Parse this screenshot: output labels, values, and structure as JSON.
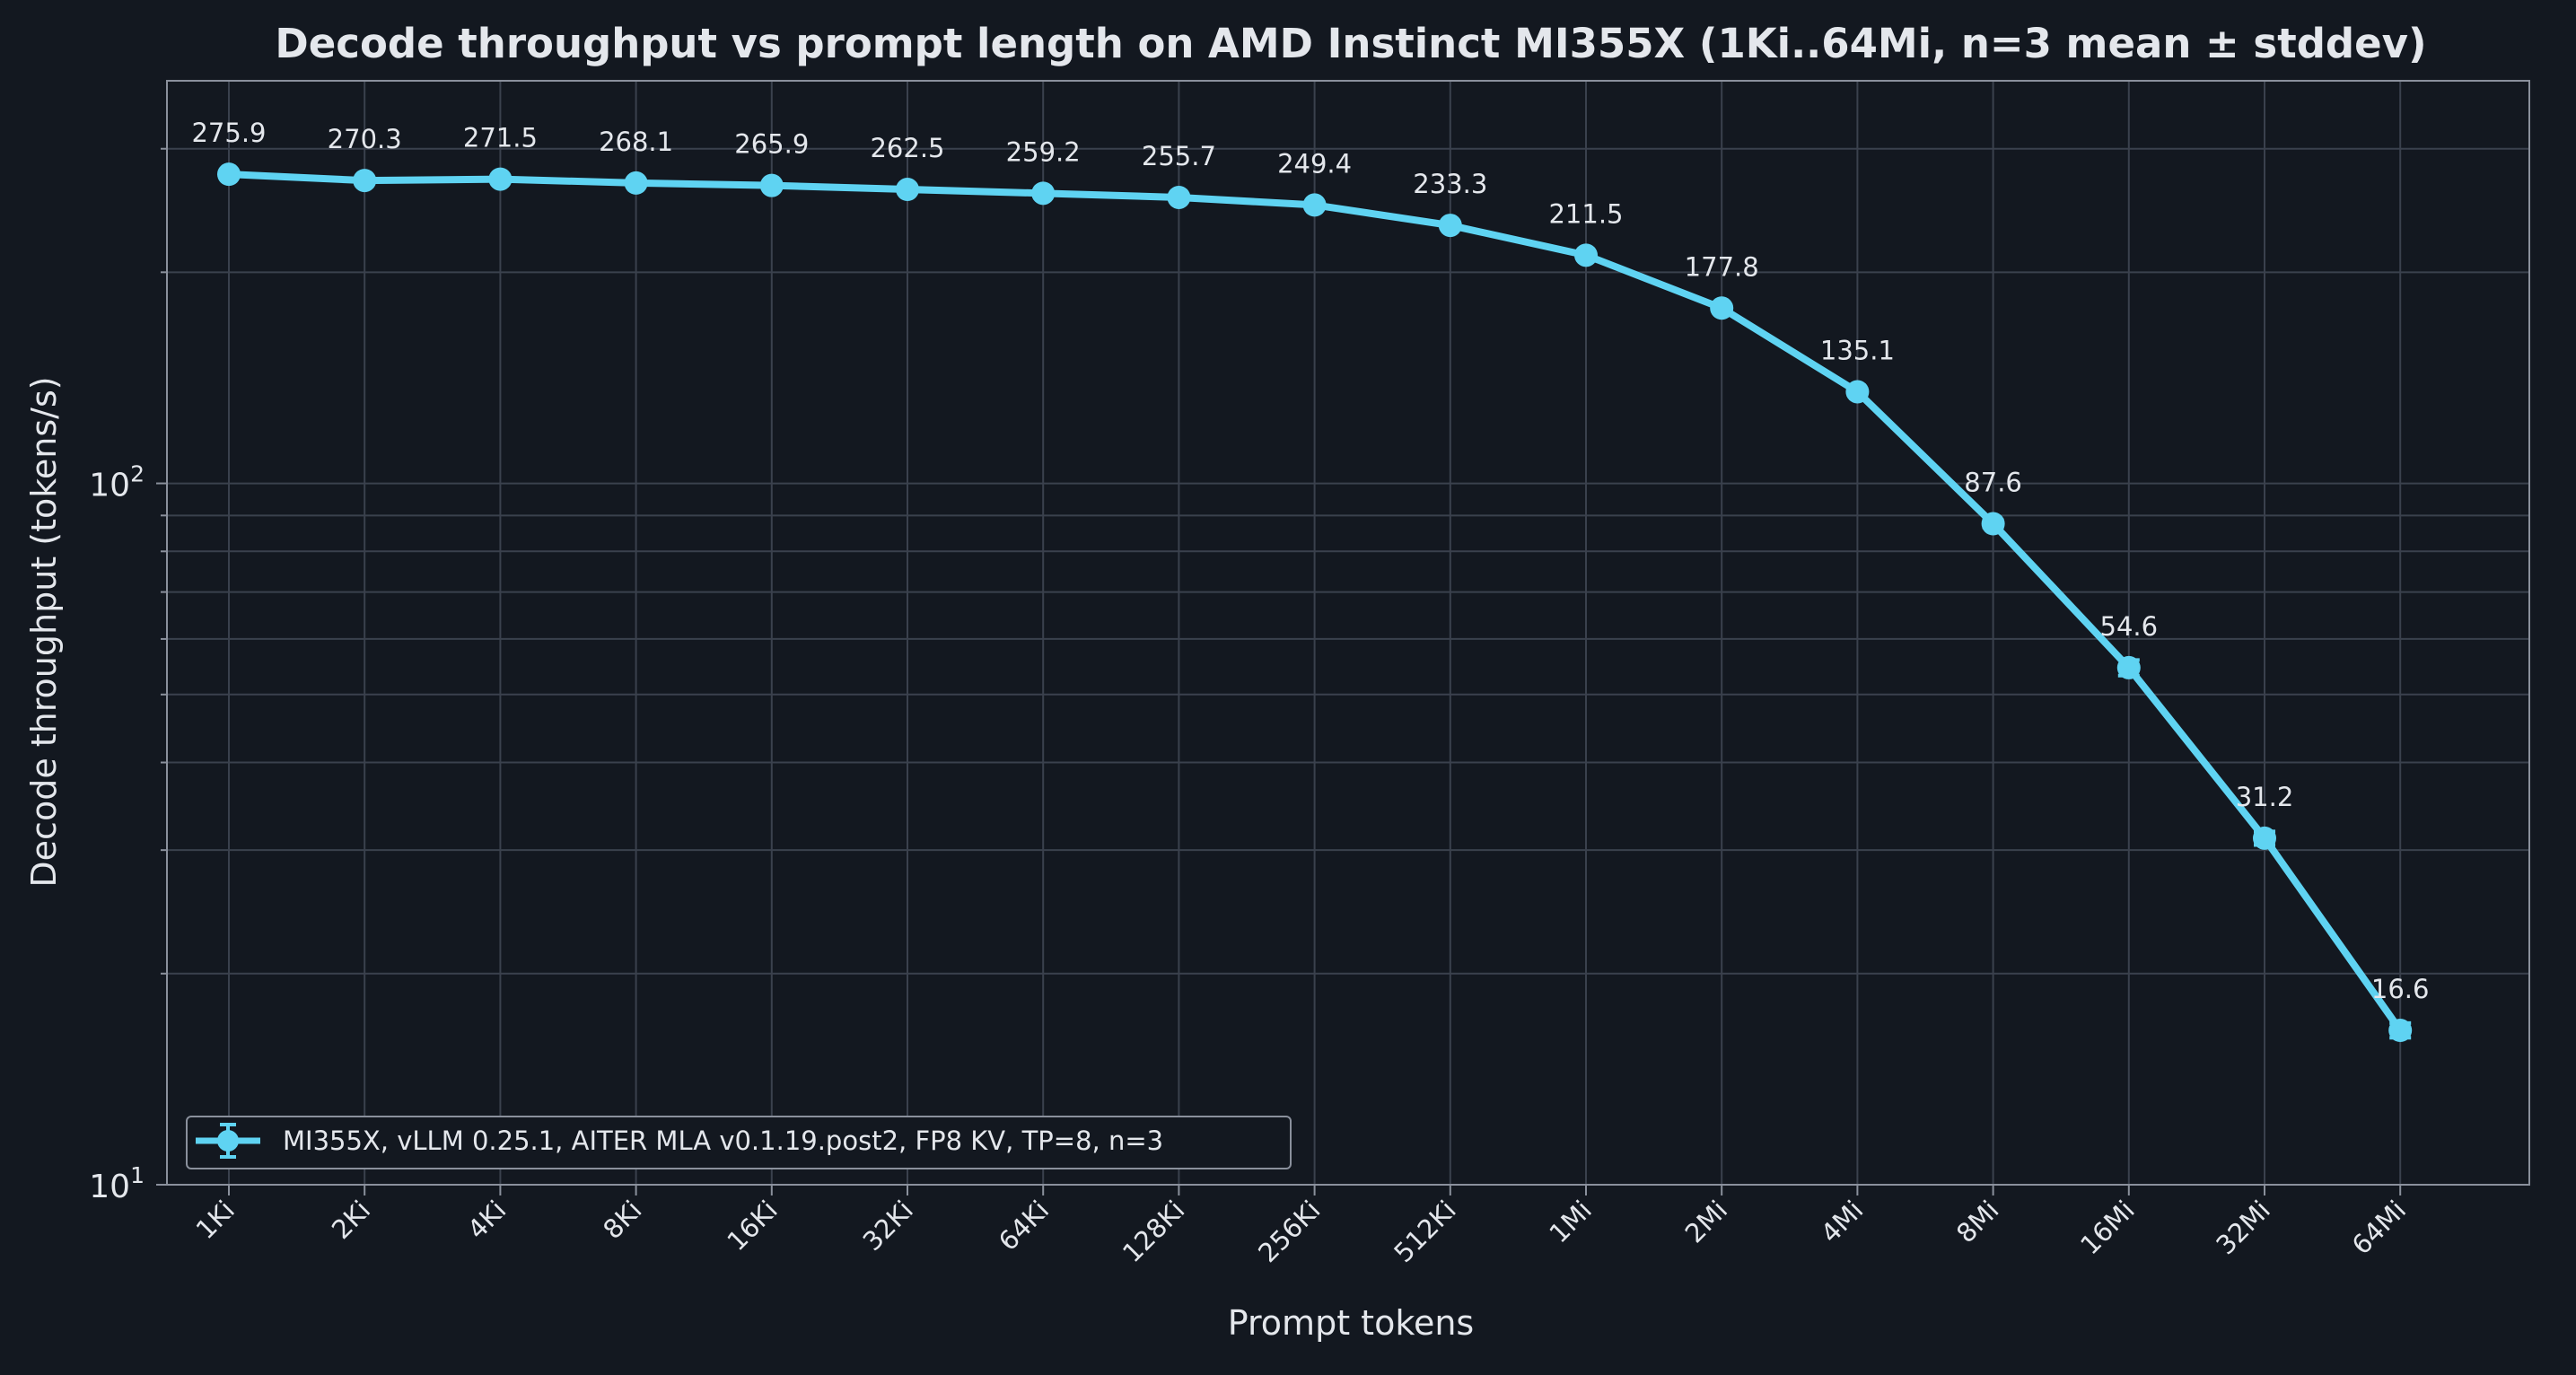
{
  "colors": {
    "background": "#131820",
    "axes_frame": "#8a909c",
    "grid": "#3a414d",
    "text": "#e4e7ec",
    "series": "#5fd3f2"
  },
  "chart_data": {
    "type": "line",
    "title": "Decode throughput vs prompt length on AMD Instinct MI355X (1Ki..64Mi, n=3 mean ± stddev)",
    "xlabel": "Prompt tokens",
    "ylabel": "Decode throughput (tokens/s)",
    "yscale": "log",
    "ylim": [
      10,
      375
    ],
    "yticks": [
      {
        "value": 10,
        "base": "10",
        "exp": "1"
      },
      {
        "value": 100,
        "base": "10",
        "exp": "2"
      }
    ],
    "grid": true,
    "categories": [
      "1Ki",
      "2Ki",
      "4Ki",
      "8Ki",
      "16Ki",
      "32Ki",
      "64Ki",
      "128Ki",
      "256Ki",
      "512Ki",
      "1Mi",
      "2Mi",
      "4Mi",
      "8Mi",
      "16Mi",
      "32Mi",
      "64Mi"
    ],
    "series": [
      {
        "name": "MI355X, vLLM 0.25.1, AITER MLA v0.1.19.post2, FP8 KV, TP=8, n=3",
        "values": [
          275.9,
          270.3,
          271.5,
          268.1,
          265.9,
          262.5,
          259.2,
          255.7,
          249.4,
          233.3,
          211.5,
          177.8,
          135.1,
          87.6,
          54.6,
          31.2,
          16.6
        ],
        "labels": [
          "275.9",
          "270.3",
          "271.5",
          "268.1",
          "265.9",
          "262.5",
          "259.2",
          "255.7",
          "249.4",
          "233.3",
          "211.5",
          "177.8",
          "135.1",
          "87.6",
          "54.6",
          "31.2",
          "16.6"
        ],
        "errors": [
          1.0,
          1.0,
          1.0,
          1.0,
          1.0,
          1.0,
          1.0,
          1.0,
          1.0,
          1.0,
          1.2,
          1.0,
          1.2,
          1.0,
          1.4,
          0.7,
          0.4
        ]
      }
    ],
    "legend_position": "lower-left"
  }
}
